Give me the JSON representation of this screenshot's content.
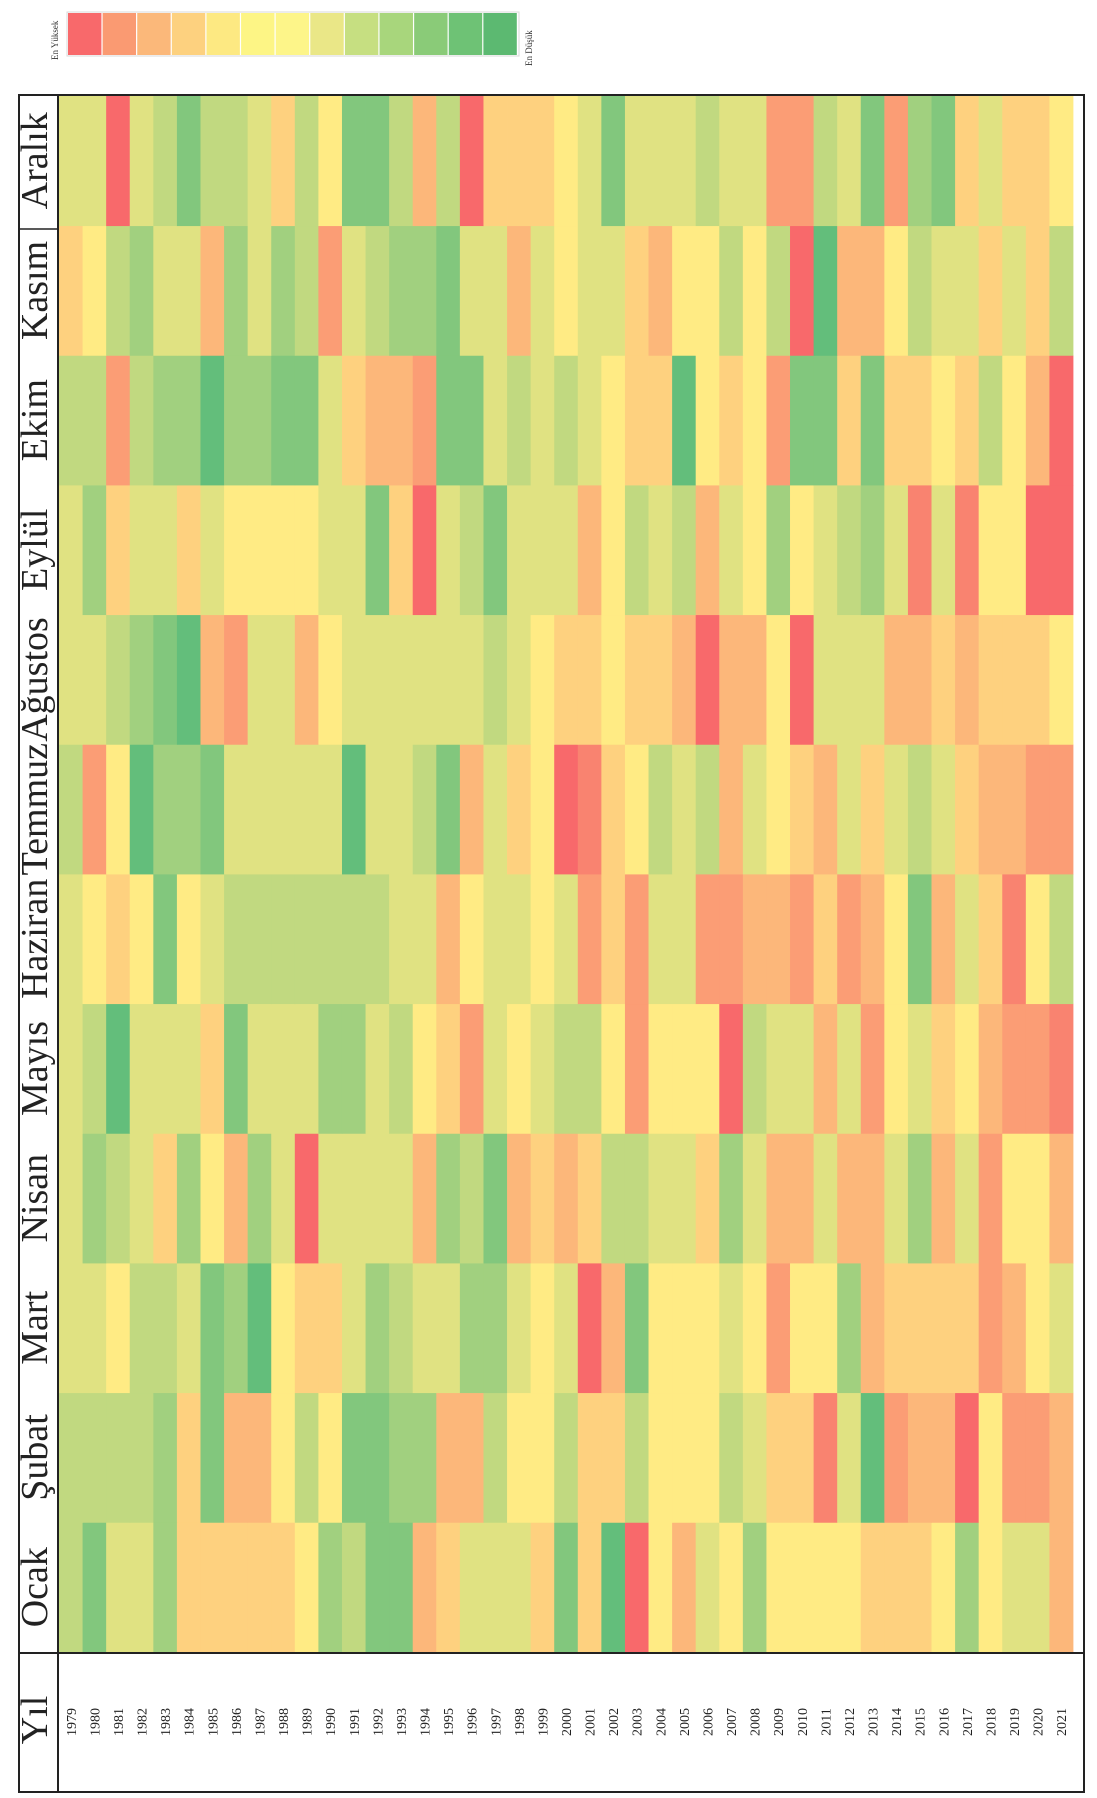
{
  "chart_data": {
    "type": "heatmap",
    "orientation": "rotated-90-ccw",
    "header_label": "Yıl",
    "months": [
      "Ocak",
      "Şubat",
      "Mart",
      "Nisan",
      "Mayıs",
      "Haziran",
      "Temmuz",
      "Ağustos",
      "Eylül",
      "Ekim",
      "Kasım",
      "Aralık"
    ],
    "years": [
      1979,
      1980,
      1981,
      1982,
      1983,
      1984,
      1985,
      1986,
      1987,
      1988,
      1989,
      1990,
      1991,
      1992,
      1993,
      1994,
      1995,
      1996,
      1997,
      1998,
      1999,
      2000,
      2001,
      2002,
      2003,
      2004,
      2005,
      2006,
      2007,
      2008,
      2009,
      2010,
      2011,
      2012,
      2013,
      2014,
      2015,
      2016,
      2017,
      2018,
      2019,
      2020,
      2021
    ],
    "legend": {
      "high_label": "En Yüksek",
      "low_label": "En Düşük",
      "swatches": [
        "#f8696b",
        "#fa9a72",
        "#fbb87a",
        "#fdd17f",
        "#fde982",
        "#fdf585",
        "#fdf589",
        "#eae787",
        "#c6df81",
        "#a8d67c",
        "#8acb78",
        "#6ec275",
        "#5cb971"
      ]
    },
    "scale": {
      "min": 0,
      "max": 10,
      "meaning": "0 = En Düşük (green), 10 = En Yüksek (red)"
    },
    "values": {
      "Ocak": [
        3,
        1,
        4,
        4,
        2,
        6,
        6,
        6,
        6,
        6,
        5,
        2,
        3,
        1,
        1,
        7,
        6,
        4,
        4,
        4,
        6,
        1,
        6,
        0,
        10,
        5,
        7,
        4,
        5,
        2,
        5,
        5,
        5,
        5,
        6,
        6,
        6,
        5,
        2,
        5,
        4,
        4,
        7
      ],
      "Şubat": [
        3,
        3,
        3,
        3,
        2,
        6,
        1,
        7,
        7,
        5,
        3,
        5,
        1,
        1,
        2,
        2,
        7,
        7,
        3,
        5,
        5,
        3,
        6,
        6,
        3,
        5,
        5,
        5,
        3,
        4,
        6,
        6,
        9,
        4,
        0,
        8,
        7,
        7,
        10,
        5,
        8,
        8,
        7
      ],
      "Mart": [
        4,
        4,
        5,
        3,
        3,
        4,
        1,
        2,
        0,
        5,
        6,
        6,
        4,
        2,
        3,
        4,
        4,
        2,
        2,
        4,
        5,
        4,
        10,
        7,
        1,
        5,
        5,
        5,
        4,
        5,
        8,
        5,
        5,
        2,
        7,
        6,
        6,
        6,
        6,
        8,
        7,
        5,
        4
      ],
      "Nisan": [
        4,
        2,
        3,
        4,
        6,
        2,
        5,
        7,
        2,
        4,
        10,
        4,
        4,
        4,
        4,
        7,
        2,
        3,
        1,
        7,
        6,
        7,
        6,
        3,
        3,
        4,
        4,
        6,
        2,
        4,
        7,
        7,
        4,
        7,
        7,
        4,
        2,
        7,
        4,
        8,
        5,
        5,
        7
      ],
      "Mayıs": [
        4,
        3,
        0,
        4,
        4,
        4,
        6,
        1,
        4,
        4,
        4,
        2,
        2,
        4,
        3,
        5,
        6,
        8,
        4,
        5,
        4,
        3,
        3,
        5,
        8,
        5,
        5,
        5,
        10,
        3,
        4,
        4,
        7,
        4,
        8,
        5,
        4,
        6,
        5,
        7,
        8,
        8,
        9
      ],
      "Haziran": [
        4,
        5,
        6,
        5,
        1,
        5,
        4,
        3,
        3,
        3,
        3,
        3,
        3,
        3,
        4,
        4,
        7,
        5,
        4,
        4,
        5,
        4,
        8,
        6,
        8,
        4,
        4,
        8,
        8,
        7,
        7,
        8,
        6,
        8,
        7,
        5,
        1,
        7,
        4,
        6,
        9,
        5,
        3
      ],
      "Temmuz": [
        3,
        8,
        5,
        0,
        2,
        2,
        1,
        4,
        4,
        4,
        4,
        4,
        0,
        4,
        4,
        3,
        1,
        7,
        4,
        6,
        5,
        10,
        9,
        6,
        5,
        3,
        4,
        3,
        7,
        4,
        5,
        6,
        7,
        4,
        6,
        4,
        3,
        4,
        6,
        7,
        7,
        8,
        8
      ],
      "Ağustos": [
        4,
        4,
        3,
        2,
        1,
        0,
        7,
        8,
        4,
        4,
        7,
        5,
        4,
        4,
        4,
        4,
        4,
        4,
        3,
        4,
        5,
        6,
        6,
        5,
        6,
        6,
        7,
        10,
        7,
        7,
        5,
        10,
        4,
        4,
        4,
        7,
        7,
        6,
        7,
        6,
        6,
        6,
        5
      ],
      "Eylül": [
        4,
        2,
        6,
        4,
        4,
        6,
        4,
        5,
        5,
        5,
        5,
        4,
        4,
        1,
        6,
        10,
        4,
        3,
        1,
        4,
        4,
        4,
        7,
        5,
        3,
        4,
        3,
        7,
        4,
        5,
        2,
        5,
        4,
        3,
        2,
        4,
        9,
        4,
        9,
        5,
        5,
        10,
        10
      ],
      "Ekim": [
        3,
        3,
        8,
        3,
        2,
        2,
        0,
        2,
        2,
        1,
        1,
        4,
        6,
        7,
        7,
        8,
        1,
        1,
        4,
        3,
        4,
        3,
        4,
        5,
        6,
        6,
        0,
        5,
        6,
        5,
        8,
        1,
        1,
        6,
        1,
        6,
        6,
        5,
        6,
        3,
        5,
        7,
        10
      ],
      "Kasım": [
        6,
        5,
        3,
        2,
        4,
        4,
        7,
        2,
        4,
        2,
        3,
        8,
        4,
        3,
        2,
        2,
        1,
        4,
        4,
        7,
        4,
        5,
        4,
        4,
        6,
        7,
        5,
        5,
        3,
        5,
        3,
        10,
        0,
        7,
        7,
        5,
        3,
        4,
        4,
        6,
        4,
        6,
        3
      ],
      "Aralık": [
        4,
        4,
        10,
        4,
        3,
        1,
        3,
        3,
        4,
        6,
        3,
        5,
        1,
        1,
        3,
        7,
        3,
        10,
        6,
        6,
        6,
        5,
        4,
        1,
        4,
        4,
        4,
        3,
        4,
        4,
        8,
        8,
        3,
        4,
        1,
        8,
        2,
        1,
        6,
        4,
        6,
        6,
        5
      ]
    }
  }
}
